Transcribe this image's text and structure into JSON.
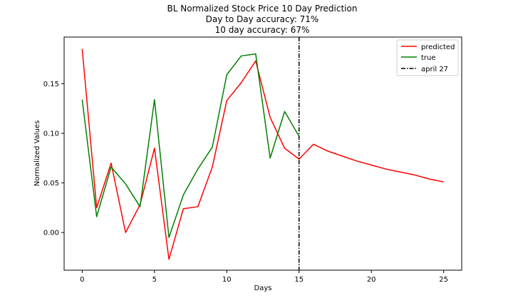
{
  "chart_data": {
    "type": "line",
    "title": [
      "BL Normalized Stock Price 10 Day Prediction",
      "Day to Day accuracy: 71%",
      "10 day accuracy: 67%"
    ],
    "xlabel": "Days",
    "ylabel": "Normalized Values",
    "xlim": [
      -1.25,
      26.25
    ],
    "ylim": [
      -0.038,
      0.197
    ],
    "xticks": [
      0,
      5,
      10,
      15,
      20,
      25
    ],
    "xtick_labels": [
      "0",
      "5",
      "10",
      "15",
      "20",
      "25"
    ],
    "yticks": [
      0.0,
      0.05,
      0.1,
      0.15
    ],
    "ytick_labels": [
      "0.00",
      "0.05",
      "0.10",
      "0.15"
    ],
    "grid": false,
    "legend_position": "top-right",
    "series": [
      {
        "name": "predicted",
        "color": "#ff0000",
        "x": [
          0,
          1,
          2,
          3,
          4,
          5,
          6,
          7,
          8,
          9,
          10,
          11,
          12,
          13,
          14,
          15,
          16,
          17,
          18,
          19,
          20,
          21,
          22,
          23,
          24,
          25
        ],
        "y": [
          0.185,
          0.025,
          0.07,
          0.0,
          0.028,
          0.085,
          -0.027,
          0.024,
          0.026,
          0.066,
          0.133,
          0.151,
          0.173,
          0.116,
          0.085,
          0.074,
          0.089,
          0.082,
          0.077,
          0.072,
          0.068,
          0.064,
          0.061,
          0.058,
          0.054,
          0.051
        ]
      },
      {
        "name": "true",
        "color": "#008000",
        "x": [
          0,
          1,
          2,
          3,
          4,
          5,
          6,
          7,
          8,
          9,
          10,
          11,
          12,
          13,
          14,
          15
        ],
        "y": [
          0.134,
          0.016,
          0.066,
          0.049,
          0.026,
          0.134,
          -0.005,
          0.038,
          0.064,
          0.086,
          0.159,
          0.178,
          0.18,
          0.075,
          0.122,
          0.097
        ]
      }
    ],
    "vline": {
      "name": "april 27",
      "x": 15,
      "color": "#000000",
      "style": "dash-dot"
    }
  }
}
